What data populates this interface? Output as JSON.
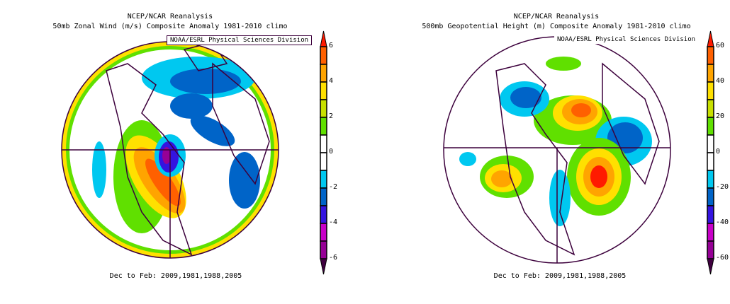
{
  "panels": [
    {
      "title1": "NCEP/NCAR Reanalysis",
      "title2": "50mb Zonal Wind (m/s) Composite Anomaly 1981-2010 climo",
      "credit": "NOAA/ESRL Physical Sciences Division",
      "footer": "Dec to Feb: 2009,1981,1988,2005",
      "colorbar_labels": [
        "6",
        "4",
        "2",
        "0",
        "-2",
        "-4",
        "-6"
      ]
    },
    {
      "title1": "NCEP/NCAR Reanalysis",
      "title2": "500mb Geopotential Height (m) Composite Anomaly 1981-2010 climo",
      "credit": "NOAA/ESRL Physical Sciences Division",
      "footer": "Dec to Feb: 2009,1981,1988,2005",
      "colorbar_labels": [
        "60",
        "40",
        "20",
        "0",
        "-20",
        "-40",
        "-60"
      ]
    }
  ],
  "colors": {
    "top_arrow": "#ff1a00",
    "bands": [
      "#ff6000",
      "#ffa400",
      "#ffe000",
      "#c8e000",
      "#60e000",
      "#ffffff",
      "#ffffff",
      "#00c8f0",
      "#0064c8",
      "#3414e0",
      "#c800c8",
      "#960096"
    ],
    "bottom_arrow": "#400040",
    "coast": "#3c003c"
  }
}
